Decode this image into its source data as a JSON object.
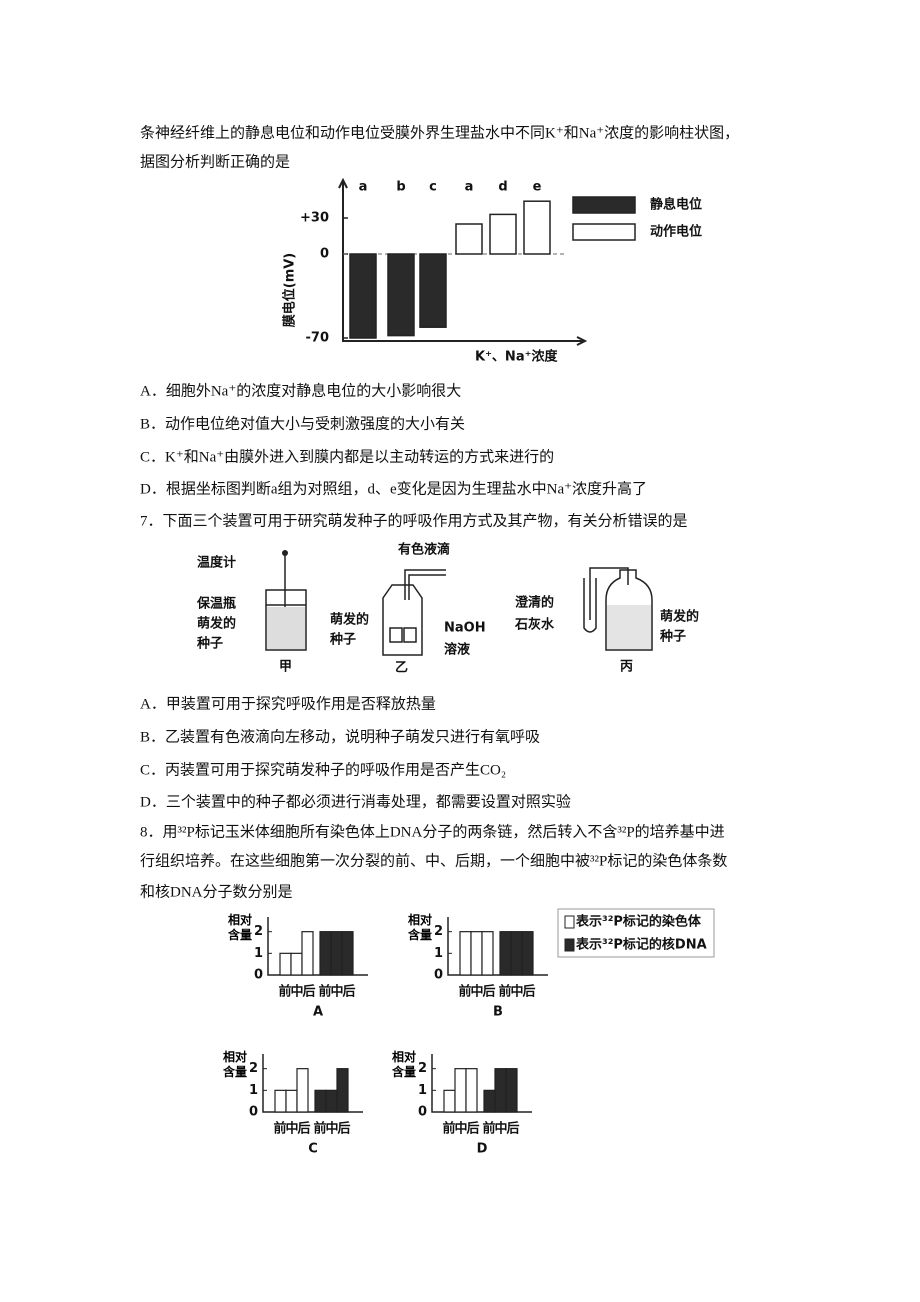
{
  "q6": {
    "stem": [
      "条神经纤维上的静息电位和动作电位受膜外界生理盐水中不同K⁺和Na⁺浓度的影响柱状图，",
      "据图分析判断正确的是"
    ],
    "chart": {
      "type": "bar",
      "categories": [
        "a",
        "b",
        "c",
        "a",
        "d",
        "e"
      ],
      "y_label": "膜电位(mV)",
      "x_label": "K⁺、Na⁺浓度",
      "ylim": [
        -70,
        55
      ],
      "yticks": [
        {
          "value": 30,
          "label": "+30"
        },
        0,
        -70
      ],
      "series": [
        {
          "name": "静息电位",
          "color": "#2a2a2a",
          "values": [
            -70,
            -68,
            -61,
            null,
            null,
            null
          ]
        },
        {
          "name": "动作电位",
          "color": "#ffffff",
          "values": [
            null,
            null,
            null,
            25,
            33,
            44
          ]
        }
      ]
    },
    "options": [
      "A．细胞外Na⁺的浓度对静息电位的大小影响很大",
      "B．动作电位绝对值大小与受刺激强度的大小有关",
      "C．K⁺和Na⁺由膜外进入到膜内都是以主动转运的方式来进行的",
      "D．根据坐标图判断a组为对照组，d、e变化是因为生理盐水中Na⁺浓度升高了"
    ]
  },
  "q7": {
    "stem": "7．下面三个装置可用于研究萌发种子的呼吸作用方式及其产物，有关分析错误的是",
    "figure": {
      "jia": {
        "labels": [
          "温度计",
          "保温瓶",
          "萌发的",
          "种子"
        ],
        "name": "甲"
      },
      "yi": {
        "labels": [
          "有色液滴",
          "萌发的",
          "种子",
          "NaOH",
          "溶液"
        ],
        "name": "乙"
      },
      "bing": {
        "labels": [
          "澄清的",
          "石灰水",
          "萌发的",
          "种子"
        ],
        "name": "丙"
      }
    },
    "options": [
      "A．甲装置可用于探究呼吸作用是否释放热量",
      "B．乙装置有色液滴向左移动，说明种子萌发只进行有氧呼吸",
      "C．丙装置可用于探究萌发种子的呼吸作用是否产生CO₂",
      "D．三个装置中的种子都必须进行消毒处理，都需要设置对照实验"
    ]
  },
  "q8": {
    "stem": [
      "8．用³²P标记玉米体细胞所有染色体上DNA分子的两条链，然后转入不含³²P的培养基中进",
      "行组织培养。在这些细胞第一次分裂的前、中、后期，一个细胞中被³²P标记的染色体条数",
      "和核DNA分子数分别是"
    ],
    "chart": {
      "type": "bar",
      "y_label": "相对含量",
      "categories": [
        "前",
        "中",
        "后"
      ],
      "ylim": [
        0,
        2.4
      ],
      "yticks": [
        0,
        1,
        2
      ],
      "series": [
        {
          "name": "表示³²P标记的染色体",
          "color": "#ffffff"
        },
        {
          "name": "表示³²P标记的核DNA",
          "color": "#2a2a2a"
        }
      ],
      "panels": [
        {
          "label": "A",
          "values": [
            [
              1,
              1,
              2
            ],
            [
              2,
              2,
              2
            ]
          ]
        },
        {
          "label": "B",
          "values": [
            [
              2,
              2,
              2
            ],
            [
              2,
              2,
              2
            ]
          ]
        },
        {
          "label": "C",
          "values": [
            [
              1,
              1,
              2
            ],
            [
              1,
              1,
              2
            ]
          ]
        },
        {
          "label": "D",
          "values": [
            [
              1,
              2,
              2
            ],
            [
              1,
              2,
              2
            ]
          ]
        }
      ]
    }
  }
}
